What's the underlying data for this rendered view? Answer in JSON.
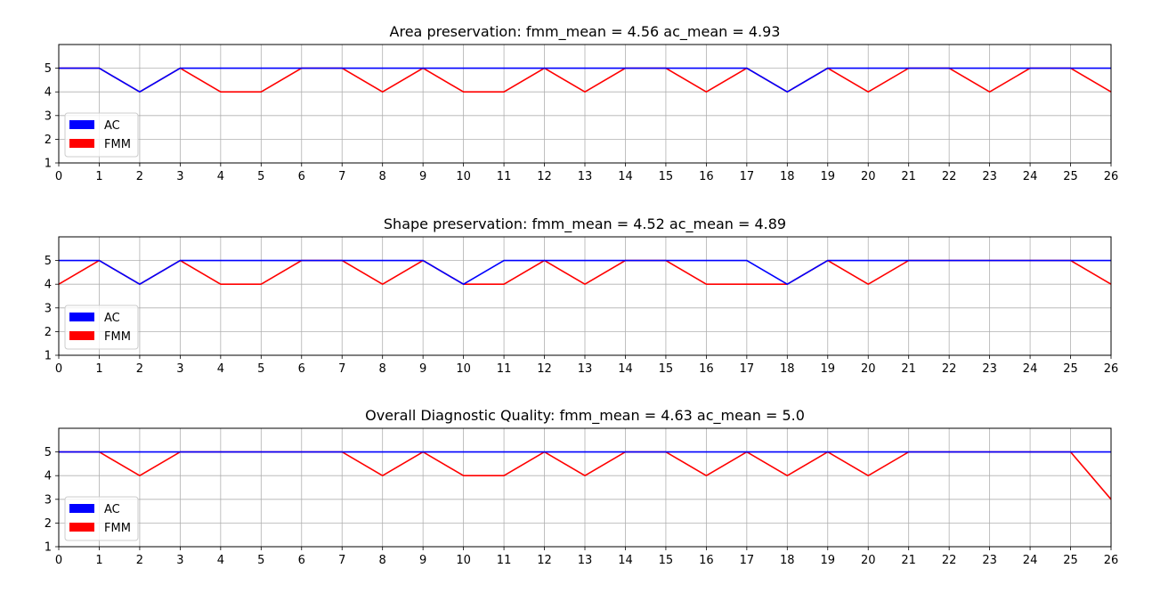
{
  "chart_data": [
    {
      "type": "line",
      "title": "Area preservation: fmm_mean = 4.56 ac_mean = 4.93",
      "xlabel": "",
      "ylabel": "",
      "xlim": [
        0,
        26
      ],
      "ylim": [
        1,
        6
      ],
      "xticks": [
        0,
        1,
        2,
        3,
        4,
        5,
        6,
        7,
        8,
        9,
        10,
        11,
        12,
        13,
        14,
        15,
        16,
        17,
        18,
        19,
        20,
        21,
        22,
        23,
        24,
        25,
        26
      ],
      "yticks": [
        1,
        2,
        3,
        4,
        5
      ],
      "grid": true,
      "legend_position": "lower-left",
      "x": [
        0,
        1,
        2,
        3,
        4,
        5,
        6,
        7,
        8,
        9,
        10,
        11,
        12,
        13,
        14,
        15,
        16,
        17,
        18,
        19,
        20,
        21,
        22,
        23,
        24,
        25,
        26
      ],
      "series": [
        {
          "name": "FMM",
          "color": "#ff0000",
          "values": [
            5,
            5,
            4,
            5,
            4,
            4,
            5,
            5,
            4,
            5,
            4,
            4,
            5,
            4,
            5,
            5,
            4,
            5,
            4,
            5,
            4,
            5,
            5,
            4,
            5,
            5,
            4
          ]
        },
        {
          "name": "AC",
          "color": "#0000ff",
          "values": [
            5,
            5,
            4,
            5,
            5,
            5,
            5,
            5,
            5,
            5,
            5,
            5,
            5,
            5,
            5,
            5,
            5,
            5,
            4,
            5,
            5,
            5,
            5,
            5,
            5,
            5,
            5
          ]
        }
      ],
      "legend": [
        {
          "label": "AC",
          "color": "#0000ff"
        },
        {
          "label": "FMM",
          "color": "#ff0000"
        }
      ]
    },
    {
      "type": "line",
      "title": "Shape preservation: fmm_mean = 4.52 ac_mean = 4.89",
      "xlabel": "",
      "ylabel": "",
      "xlim": [
        0,
        26
      ],
      "ylim": [
        1,
        6
      ],
      "xticks": [
        0,
        1,
        2,
        3,
        4,
        5,
        6,
        7,
        8,
        9,
        10,
        11,
        12,
        13,
        14,
        15,
        16,
        17,
        18,
        19,
        20,
        21,
        22,
        23,
        24,
        25,
        26
      ],
      "yticks": [
        1,
        2,
        3,
        4,
        5
      ],
      "grid": true,
      "legend_position": "lower-left",
      "x": [
        0,
        1,
        2,
        3,
        4,
        5,
        6,
        7,
        8,
        9,
        10,
        11,
        12,
        13,
        14,
        15,
        16,
        17,
        18,
        19,
        20,
        21,
        22,
        23,
        24,
        25,
        26
      ],
      "series": [
        {
          "name": "FMM",
          "color": "#ff0000",
          "values": [
            4,
            5,
            4,
            5,
            4,
            4,
            5,
            5,
            4,
            5,
            4,
            4,
            5,
            4,
            5,
            5,
            4,
            4,
            4,
            5,
            4,
            5,
            5,
            5,
            5,
            5,
            4
          ]
        },
        {
          "name": "AC",
          "color": "#0000ff",
          "values": [
            5,
            5,
            4,
            5,
            5,
            5,
            5,
            5,
            5,
            5,
            4,
            5,
            5,
            5,
            5,
            5,
            5,
            5,
            4,
            5,
            5,
            5,
            5,
            5,
            5,
            5,
            5
          ]
        }
      ],
      "legend": [
        {
          "label": "AC",
          "color": "#0000ff"
        },
        {
          "label": "FMM",
          "color": "#ff0000"
        }
      ]
    },
    {
      "type": "line",
      "title": "Overall Diagnostic Quality: fmm_mean = 4.63 ac_mean = 5.0",
      "xlabel": "",
      "ylabel": "",
      "xlim": [
        0,
        26
      ],
      "ylim": [
        1,
        6
      ],
      "xticks": [
        0,
        1,
        2,
        3,
        4,
        5,
        6,
        7,
        8,
        9,
        10,
        11,
        12,
        13,
        14,
        15,
        16,
        17,
        18,
        19,
        20,
        21,
        22,
        23,
        24,
        25,
        26
      ],
      "yticks": [
        1,
        2,
        3,
        4,
        5
      ],
      "grid": true,
      "legend_position": "lower-left",
      "x": [
        0,
        1,
        2,
        3,
        4,
        5,
        6,
        7,
        8,
        9,
        10,
        11,
        12,
        13,
        14,
        15,
        16,
        17,
        18,
        19,
        20,
        21,
        22,
        23,
        24,
        25,
        26
      ],
      "series": [
        {
          "name": "FMM",
          "color": "#ff0000",
          "values": [
            5,
            5,
            4,
            5,
            5,
            5,
            5,
            5,
            4,
            5,
            4,
            4,
            5,
            4,
            5,
            5,
            4,
            5,
            4,
            5,
            4,
            5,
            5,
            5,
            5,
            5,
            3
          ]
        },
        {
          "name": "AC",
          "color": "#0000ff",
          "values": [
            5,
            5,
            5,
            5,
            5,
            5,
            5,
            5,
            5,
            5,
            5,
            5,
            5,
            5,
            5,
            5,
            5,
            5,
            5,
            5,
            5,
            5,
            5,
            5,
            5,
            5,
            5
          ]
        }
      ],
      "legend": [
        {
          "label": "AC",
          "color": "#0000ff"
        },
        {
          "label": "FMM",
          "color": "#ff0000"
        }
      ]
    }
  ]
}
